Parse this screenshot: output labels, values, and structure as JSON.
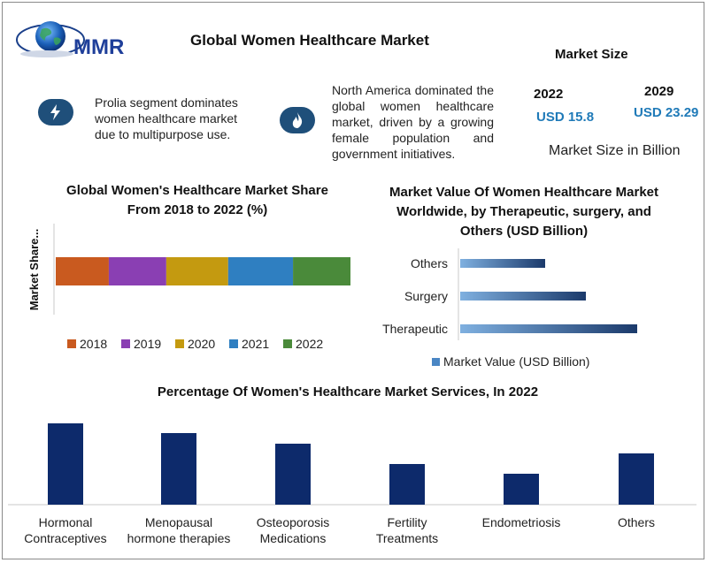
{
  "header": {
    "logo_text": "MMR",
    "title": "Global Women Healthcare Market"
  },
  "market_size": {
    "heading": "Market Size",
    "year_a": "2022",
    "value_a": "USD 15.8",
    "year_b": "2029",
    "value_b": "USD 23.29",
    "unit": "Market Size in Billion"
  },
  "notes": {
    "left": "Prolia segment dominates women healthcare market due to multipurpose use.",
    "right": "North America dominated the global women healthcare market, driven by a growing female population and government initiatives."
  },
  "icons": {
    "left": "lightning-bolt-icon",
    "right": "flame-icon",
    "logo": "globe-logo-icon"
  },
  "colors": {
    "badge": "#1f4f7a",
    "value_text": "#1f7ab8",
    "services_bar": "#0d2a6b"
  },
  "chart_data": [
    {
      "type": "bar",
      "orientation": "horizontal-stacked",
      "title": "Global Women's Healthcare Market Share From 2018 to 2022 (%)",
      "ylabel": "Market Share...",
      "categories": [
        ""
      ],
      "series": [
        {
          "name": "2018",
          "values": [
            18
          ],
          "color": "#c95a1f"
        },
        {
          "name": "2019",
          "values": [
            19.5
          ],
          "color": "#8a3fb3"
        },
        {
          "name": "2020",
          "values": [
            21
          ],
          "color": "#c49a10"
        },
        {
          "name": "2021",
          "values": [
            22
          ],
          "color": "#2f7fc1"
        },
        {
          "name": "2022",
          "values": [
            19.5
          ],
          "color": "#4a8a3a"
        }
      ],
      "legend": "bottom"
    },
    {
      "type": "bar",
      "orientation": "horizontal",
      "title": "Market Value Of Women Healthcare Market Worldwide, by Therapeutic, surgery, and Others (USD Billion)",
      "categories": [
        "Others",
        "Surgery",
        "Therapeutic"
      ],
      "series": [
        {
          "name": "Market Value (USD Billion)",
          "values": [
            4.8,
            7.1,
            10.0
          ]
        }
      ],
      "legend": "bottom"
    },
    {
      "type": "bar",
      "title": "Percentage Of Women's Healthcare Market Services, In 2022",
      "categories": [
        "Hormonal Contraceptives",
        "Menopausal hormone therapies",
        "Osteoporosis Medications",
        "Fertility Treatments",
        "Endometriosis",
        "Others"
      ],
      "series": [
        {
          "values": [
            92,
            81,
            69,
            46,
            35,
            58
          ]
        }
      ],
      "ylim": [
        0,
        100
      ],
      "legend": "none"
    }
  ]
}
